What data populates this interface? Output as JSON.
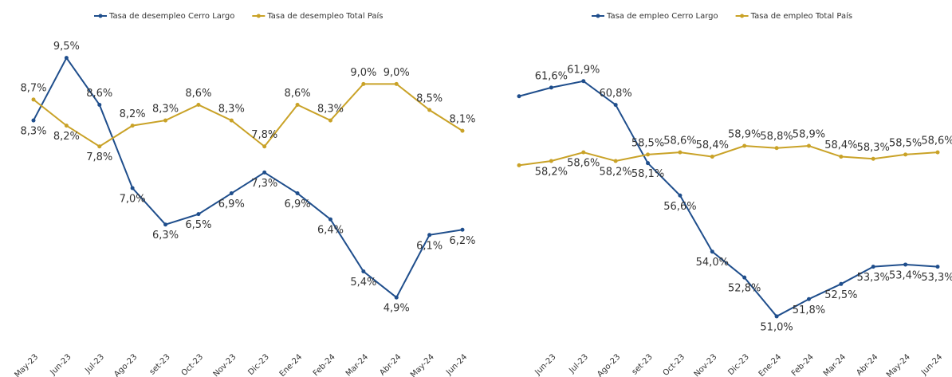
{
  "chart_data": [
    {
      "type": "line",
      "categories": [
        "May-23",
        "Jun-23",
        "Jul-23",
        "Ago-23",
        "set-23",
        "Oct-23",
        "Nov-23",
        "Dic-23",
        "Ene-24",
        "Feb-24",
        "Mar-24",
        "Abr-24",
        "May-24",
        "Jun-24"
      ],
      "ylim": [
        4,
        10
      ],
      "series": [
        {
          "name": "Tasa de desempleo Cerro Largo",
          "color": "#1f4e8c",
          "values": [
            8.3,
            9.5,
            8.6,
            7.0,
            6.3,
            6.5,
            6.9,
            7.3,
            6.9,
            6.4,
            5.4,
            4.9,
            6.1,
            6.2
          ],
          "value_labels": [
            "8,3%",
            "9,5%",
            "8,6%",
            "7,0%",
            "6,3%",
            "6,5%",
            "6,9%",
            "7,3%",
            "6,9%",
            "6,4%",
            "5,4%",
            "4,9%",
            "6,1%",
            "6,2%"
          ]
        },
        {
          "name": "Tasa de desempleo Total País",
          "color": "#c9a227",
          "values": [
            8.7,
            8.2,
            7.8,
            8.2,
            8.3,
            8.6,
            8.3,
            7.8,
            8.6,
            8.3,
            9.0,
            9.0,
            8.5,
            8.1
          ],
          "value_labels": [
            "8,7%",
            "8,2%",
            "7,8%",
            "8,2%",
            "8,3%",
            "8,6%",
            "8,3%",
            "7,8%",
            "8,6%",
            "8,3%",
            "9,0%",
            "9,0%",
            "8,5%",
            "8,1%"
          ]
        }
      ]
    },
    {
      "type": "line",
      "categories": [
        null,
        "Jun-23",
        "Jul-23",
        "Ago-23",
        "set-23",
        "Oct-23",
        "Nov-23",
        "Dic-23",
        "Ene-24",
        "Feb-24",
        "Mar-24",
        "Abr-24",
        "May-24",
        "Jun-24"
      ],
      "ylim": [
        50,
        63
      ],
      "series": [
        {
          "name": "Tasa de empleo Cerro Largo",
          "color": "#1f4e8c",
          "values": [
            61.2,
            61.6,
            61.9,
            60.8,
            58.1,
            56.6,
            54.0,
            52.8,
            51.0,
            51.8,
            52.5,
            53.3,
            53.4,
            53.3
          ],
          "value_labels": [
            null,
            "61,6%",
            "61,9%",
            "60,8%",
            "58,1%",
            "56,6%",
            "54,0%",
            "52,8%",
            "51,0%",
            "51,8%",
            "52,5%",
            "53,3%",
            "53,4%",
            "53,3%"
          ]
        },
        {
          "name": "Tasa de empleo Total País",
          "color": "#c9a227",
          "values": [
            58.0,
            58.2,
            58.6,
            58.2,
            58.5,
            58.6,
            58.4,
            58.9,
            58.8,
            58.9,
            58.4,
            58.3,
            58.5,
            58.6
          ],
          "value_labels": [
            null,
            "58,2%",
            "58,6%",
            "58,2%",
            "58,5%",
            "58,6%",
            "58,4%",
            "58,9%",
            "58,8%",
            "58,9%",
            "58,4%",
            "58,3%",
            "58,5%",
            "58,6%"
          ]
        }
      ]
    }
  ]
}
